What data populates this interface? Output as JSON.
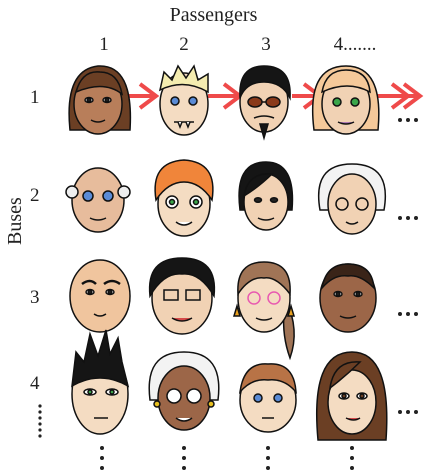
{
  "title": "Passengers",
  "y_axis_label": "Buses",
  "columns": [
    "1",
    "2",
    "3",
    "4......."
  ],
  "rows": [
    "1",
    "2",
    "3",
    "4"
  ],
  "row_tail": "......",
  "continuation": "…",
  "colors": {
    "arrow": "#ef4a4a",
    "outline": "#111111"
  }
}
